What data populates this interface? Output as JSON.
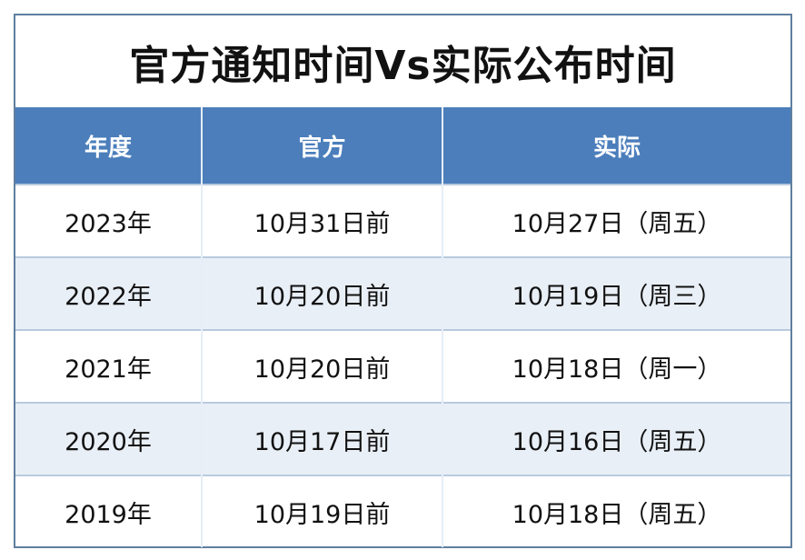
{
  "title": "官方通知时间Vs实际公布时间",
  "colors": {
    "header_bg": "#4b7ebb",
    "alt_row_bg": "#e9eff7",
    "border": "#5f7f9f"
  },
  "table": {
    "headers": [
      "年度",
      "官方",
      "实际"
    ],
    "rows": [
      [
        "2023年",
        "10月31日前",
        "10月27日（周五）"
      ],
      [
        "2022年",
        "10月20日前",
        "10月19日（周三）"
      ],
      [
        "2021年",
        "10月20日前",
        "10月18日（周一）"
      ],
      [
        "2020年",
        "10月17日前",
        "10月16日（周五）"
      ],
      [
        "2019年",
        "10月19日前",
        "10月18日（周五）"
      ]
    ]
  }
}
